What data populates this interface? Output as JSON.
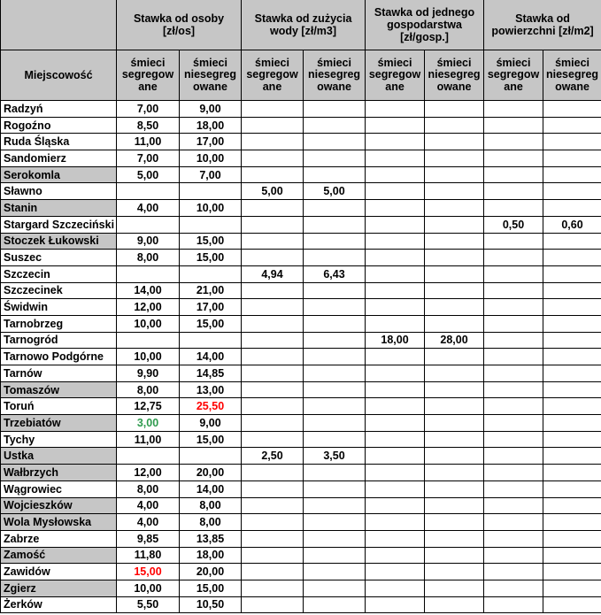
{
  "table": {
    "corner_label": "Miejscowość",
    "groups": [
      {
        "label": "Stawka od osoby\n[zł/os]"
      },
      {
        "label": "Stawka od zużycia\nwody [zł/m3]"
      },
      {
        "label": "Stawka od jednego\ngospodarstwa\n[zł/gosp.]"
      },
      {
        "label": "Stawka od\npowierzchni [zł/m2]"
      }
    ],
    "sub_seg": "śmieci\nsegregow\nane",
    "sub_nieseg": "śmieci\nniesegreg\nowane",
    "value_columns": [
      "osoby segregowane",
      "osoby niesegregowane",
      "woda segregowane",
      "woda niesegregowane",
      "gospodarstwo segregowane",
      "gospodarstwo niesegregowane",
      "powierzchnia segregowane",
      "powierzchnia niesegregowane"
    ],
    "rows": [
      {
        "name": "Radzyń",
        "highlight": false,
        "values": [
          "7,00",
          "9,00",
          "",
          "",
          "",
          "",
          "",
          ""
        ]
      },
      {
        "name": "Rogoźno",
        "highlight": false,
        "values": [
          "8,50",
          "18,00",
          "",
          "",
          "",
          "",
          "",
          ""
        ]
      },
      {
        "name": "Ruda Śląska",
        "highlight": false,
        "values": [
          "11,00",
          "17,00",
          "",
          "",
          "",
          "",
          "",
          ""
        ]
      },
      {
        "name": "Sandomierz",
        "highlight": false,
        "values": [
          "7,00",
          "10,00",
          "",
          "",
          "",
          "",
          "",
          ""
        ]
      },
      {
        "name": "Serokomla",
        "highlight": true,
        "values": [
          "5,00",
          "7,00",
          "",
          "",
          "",
          "",
          "",
          ""
        ]
      },
      {
        "name": "Sławno",
        "highlight": false,
        "values": [
          "",
          "",
          "5,00",
          "5,00",
          "",
          "",
          "",
          ""
        ]
      },
      {
        "name": "Stanin",
        "highlight": true,
        "values": [
          "4,00",
          "10,00",
          "",
          "",
          "",
          "",
          "",
          ""
        ]
      },
      {
        "name": "Stargard Szczeciński",
        "highlight": false,
        "values": [
          "",
          "",
          "",
          "",
          "",
          "",
          "0,50",
          "0,60"
        ]
      },
      {
        "name": "Stoczek Łukowski",
        "highlight": true,
        "values": [
          "9,00",
          "15,00",
          "",
          "",
          "",
          "",
          "",
          ""
        ]
      },
      {
        "name": "Suszec",
        "highlight": false,
        "values": [
          "8,00",
          "15,00",
          "",
          "",
          "",
          "",
          "",
          ""
        ]
      },
      {
        "name": "Szczecin",
        "highlight": false,
        "values": [
          "",
          "",
          "4,94",
          "6,43",
          "",
          "",
          "",
          ""
        ]
      },
      {
        "name": "Szczecinek",
        "highlight": false,
        "values": [
          "14,00",
          "21,00",
          "",
          "",
          "",
          "",
          "",
          ""
        ]
      },
      {
        "name": "Świdwin",
        "highlight": false,
        "values": [
          "12,00",
          "17,00",
          "",
          "",
          "",
          "",
          "",
          ""
        ]
      },
      {
        "name": "Tarnobrzeg",
        "highlight": false,
        "values": [
          "10,00",
          "15,00",
          "",
          "",
          "",
          "",
          "",
          ""
        ]
      },
      {
        "name": "Tarnogród",
        "highlight": false,
        "values": [
          "",
          "",
          "",
          "",
          "18,00",
          "28,00",
          "",
          ""
        ]
      },
      {
        "name": "Tarnowo Podgórne",
        "highlight": false,
        "values": [
          "10,00",
          "14,00",
          "",
          "",
          "",
          "",
          "",
          ""
        ]
      },
      {
        "name": "Tarnów",
        "highlight": false,
        "values": [
          "9,90",
          "14,85",
          "",
          "",
          "",
          "",
          "",
          ""
        ]
      },
      {
        "name": "Tomaszów",
        "highlight": true,
        "values": [
          "8,00",
          "13,00",
          "",
          "",
          "",
          "",
          "",
          ""
        ]
      },
      {
        "name": "Toruń",
        "highlight": false,
        "values": [
          "12,75",
          "25,50",
          "",
          "",
          "",
          "",
          "",
          ""
        ],
        "accents": {
          "1": "red"
        }
      },
      {
        "name": "Trzebiatów",
        "highlight": true,
        "values": [
          "3,00",
          "9,00",
          "",
          "",
          "",
          "",
          "",
          ""
        ],
        "accents": {
          "0": "green"
        }
      },
      {
        "name": "Tychy",
        "highlight": false,
        "values": [
          "11,00",
          "15,00",
          "",
          "",
          "",
          "",
          "",
          ""
        ]
      },
      {
        "name": "Ustka",
        "highlight": true,
        "values": [
          "",
          "",
          "2,50",
          "3,50",
          "",
          "",
          "",
          ""
        ]
      },
      {
        "name": "Wałbrzych",
        "highlight": true,
        "values": [
          "12,00",
          "20,00",
          "",
          "",
          "",
          "",
          "",
          ""
        ]
      },
      {
        "name": "Wągrowiec",
        "highlight": false,
        "values": [
          "8,00",
          "14,00",
          "",
          "",
          "",
          "",
          "",
          ""
        ]
      },
      {
        "name": "Wojcieszków",
        "highlight": true,
        "values": [
          "4,00",
          "8,00",
          "",
          "",
          "",
          "",
          "",
          ""
        ]
      },
      {
        "name": "Wola Mysłowska",
        "highlight": true,
        "values": [
          "4,00",
          "8,00",
          "",
          "",
          "",
          "",
          "",
          ""
        ]
      },
      {
        "name": "Zabrze",
        "highlight": false,
        "values": [
          "9,85",
          "13,85",
          "",
          "",
          "",
          "",
          "",
          ""
        ]
      },
      {
        "name": "Zamość",
        "highlight": true,
        "values": [
          "11,80",
          "18,00",
          "",
          "",
          "",
          "",
          "",
          ""
        ]
      },
      {
        "name": "Zawidów",
        "highlight": false,
        "values": [
          "15,00",
          "20,00",
          "",
          "",
          "",
          "",
          "",
          ""
        ],
        "accents": {
          "0": "red"
        }
      },
      {
        "name": "Zgierz",
        "highlight": true,
        "values": [
          "10,00",
          "15,00",
          "",
          "",
          "",
          "",
          "",
          ""
        ]
      },
      {
        "name": "Żerków",
        "highlight": false,
        "values": [
          "5,50",
          "10,50",
          "",
          "",
          "",
          "",
          "",
          ""
        ]
      }
    ]
  },
  "colors": {
    "header_bg": "#c6c6c6",
    "highlight_bg": "#c6c6c6",
    "red": "#ff0000",
    "green": "#2e9b4e",
    "border": "#000000"
  }
}
